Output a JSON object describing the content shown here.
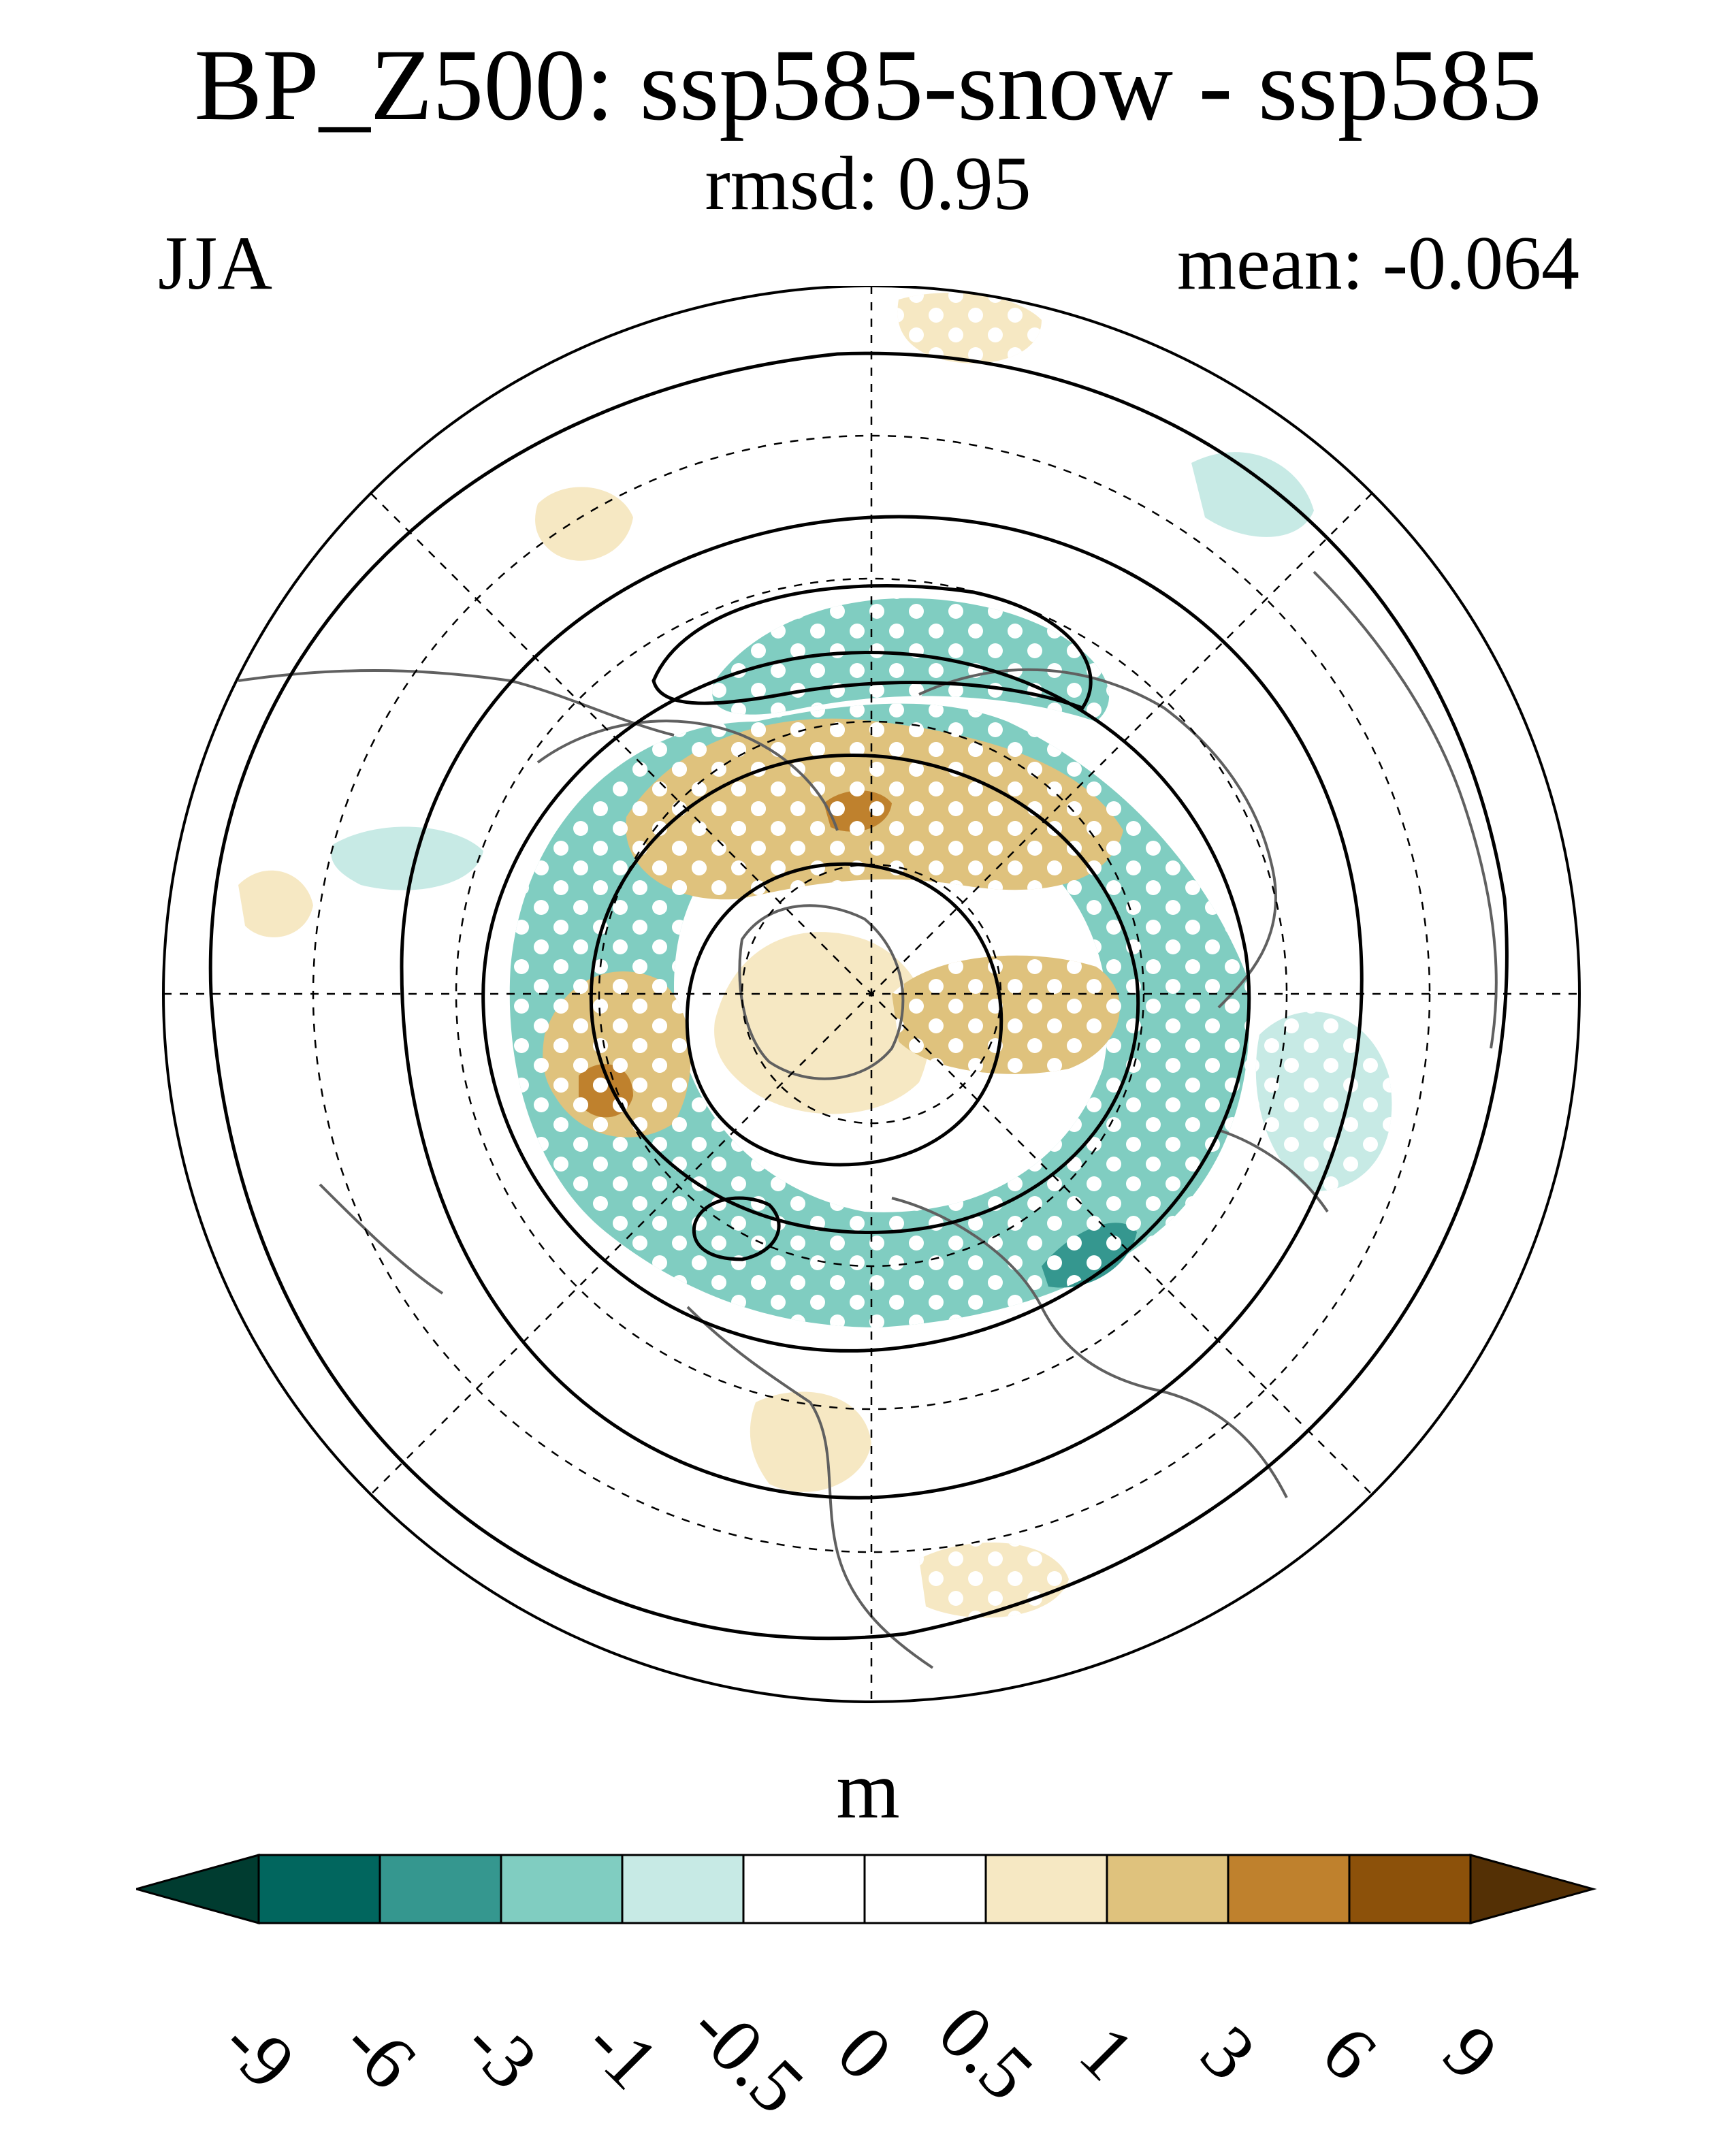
{
  "title": "BP_Z500: ssp585-snow - ssp585",
  "subtitle": "rmsd: 0.95",
  "season": "JJA",
  "mean": "mean: -0.064",
  "colorbar": {
    "units": "m",
    "levels": [
      "-9",
      "-6",
      "-3",
      "-1",
      "-0.5",
      "0",
      "0.5",
      "1",
      "3",
      "6",
      "9"
    ],
    "colors": [
      "#003c30",
      "#01665e",
      "#35978f",
      "#80cdc1",
      "#c7eae5",
      "#ffffff",
      "#ffffff",
      "#f6e8c3",
      "#dfc27d",
      "#bf812d",
      "#8c510a",
      "#543005"
    ]
  },
  "map": {
    "projection": "north-polar-stereographic",
    "stippling": "statistically significant"
  }
}
